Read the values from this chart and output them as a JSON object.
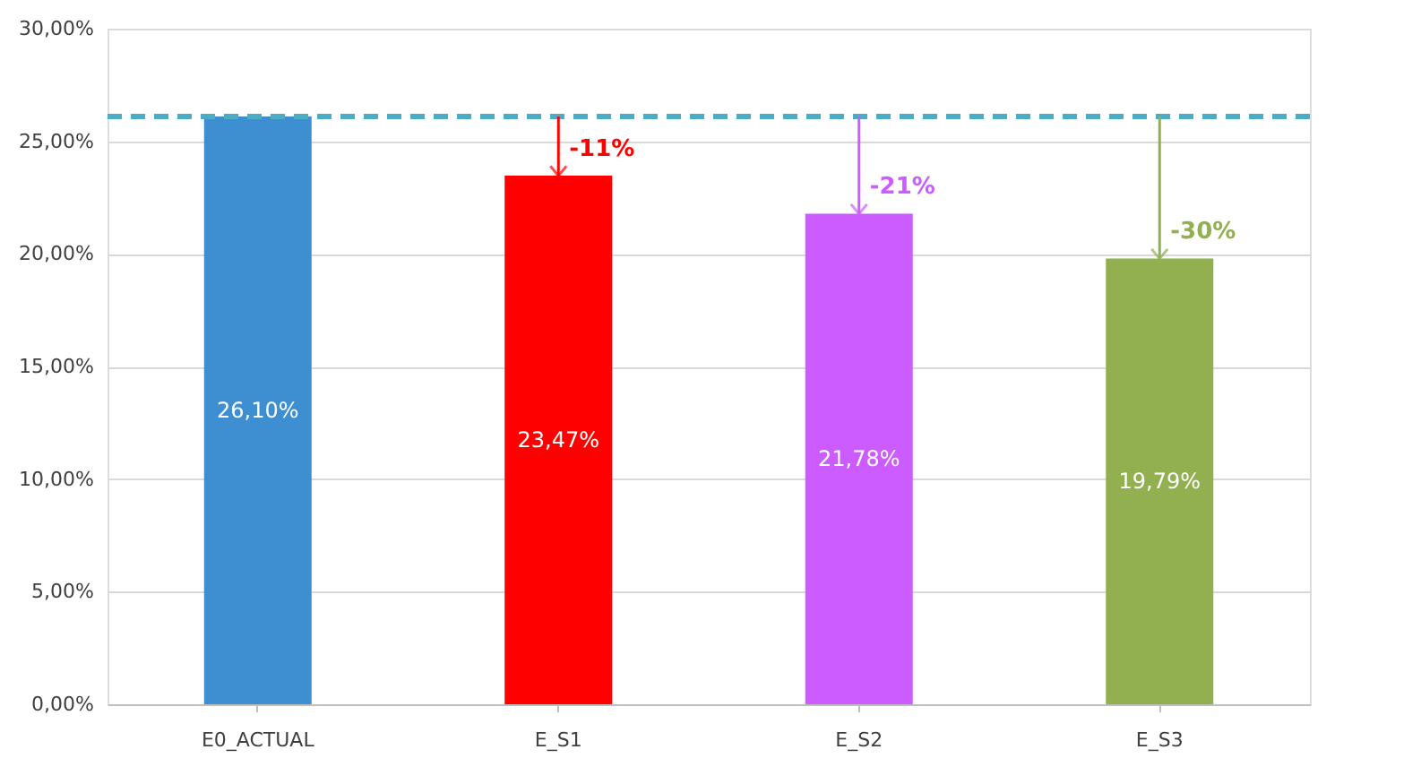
{
  "chart_data": {
    "type": "bar",
    "categories": [
      "E0_ACTUAL",
      "E_S1",
      "E_S2",
      "E_S3"
    ],
    "values": [
      26.1,
      23.47,
      21.78,
      19.79
    ],
    "colors": [
      "#3d8fd1",
      "#ff0000",
      "#cc5cff",
      "#92b050"
    ],
    "value_labels": [
      "26,10%",
      "23,47%",
      "21,78%",
      "19,79%"
    ],
    "ylim": [
      0,
      30
    ],
    "yticks": [
      {
        "value": 0,
        "label": "0,00%"
      },
      {
        "value": 5,
        "label": "5,00%"
      },
      {
        "value": 10,
        "label": "10,00%"
      },
      {
        "value": 15,
        "label": "15,00%"
      },
      {
        "value": 20,
        "label": "20,00%"
      },
      {
        "value": 25,
        "label": "25,00%"
      },
      {
        "value": 30,
        "label": "30,00%"
      }
    ],
    "ref_lines": [
      {
        "axis": "y",
        "value": 26.1,
        "color": "#4bacc6",
        "line_style": "dashed"
      }
    ],
    "annotations": [
      {
        "text": "-11%",
        "x": "E_S1",
        "y": 23.47
      },
      {
        "text": "-21%",
        "x": "E_S2",
        "y": 21.78
      },
      {
        "text": "-30%",
        "x": "E_S3",
        "y": 19.79
      }
    ],
    "grid": "y"
  }
}
